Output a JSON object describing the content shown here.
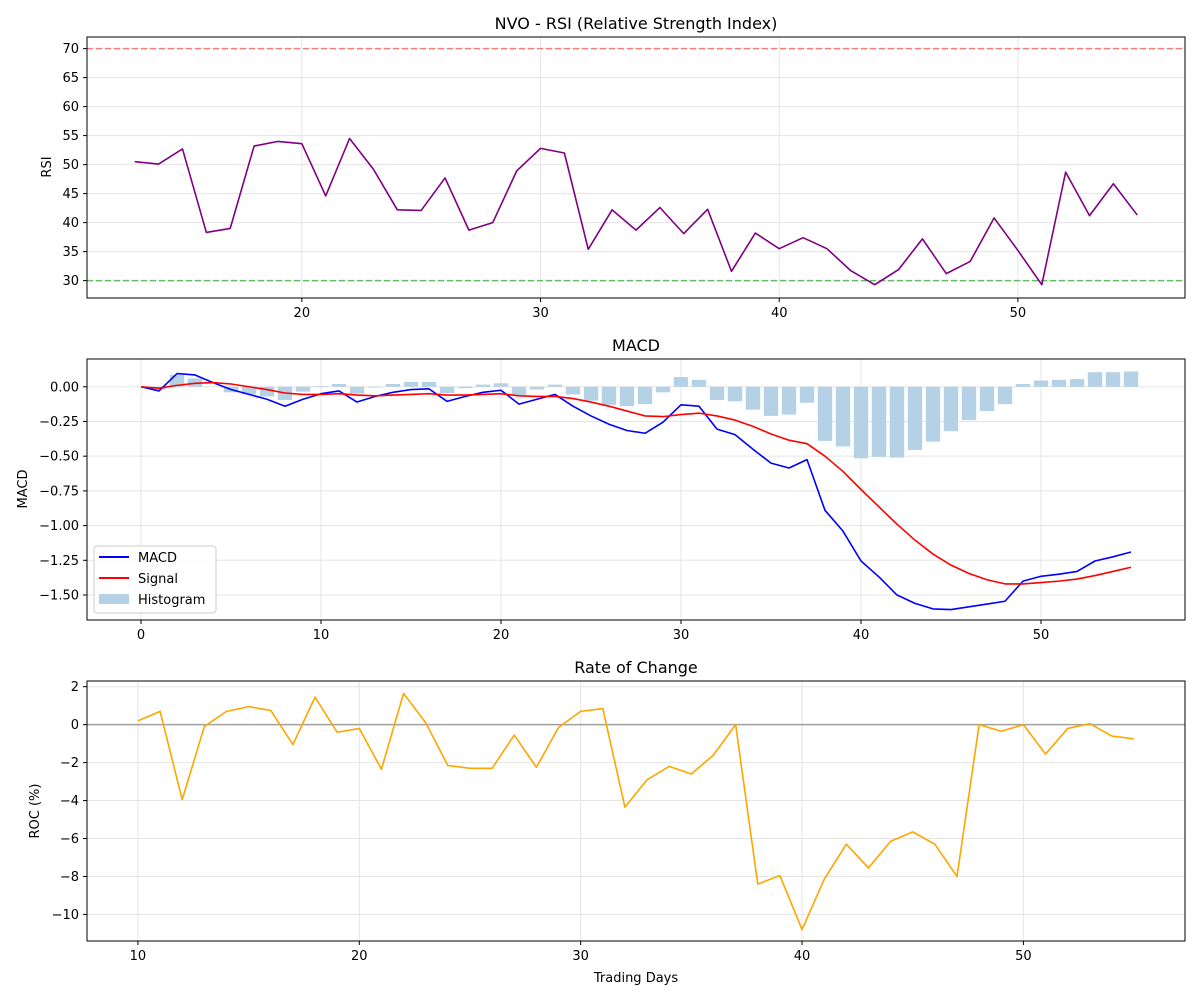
{
  "chart_data": [
    {
      "type": "line",
      "title": "NVO - RSI (Relative Strength Index)",
      "xlabel": "",
      "ylabel": "RSI",
      "xlim": [
        11,
        57
      ],
      "ylim": [
        27,
        72
      ],
      "grid": true,
      "xticks": [
        20,
        30,
        40,
        50
      ],
      "yticks": [
        30,
        35,
        40,
        45,
        50,
        55,
        60,
        65,
        70
      ],
      "reference_lines": [
        {
          "y": 70,
          "color": "#f08080",
          "style": "dashed"
        },
        {
          "y": 30,
          "color": "#66bb66",
          "style": "dashed"
        }
      ],
      "series": [
        {
          "color": "#800080",
          "x": [
            13,
            14,
            15,
            16,
            17,
            18,
            19,
            20,
            21,
            22,
            23,
            24,
            25,
            26,
            27,
            28,
            29,
            30,
            31,
            32,
            33,
            34,
            35,
            36,
            37,
            38,
            39,
            40,
            41,
            42,
            43,
            44,
            45,
            46,
            47,
            48,
            49,
            50,
            51,
            52,
            53,
            54,
            55
          ],
          "values": [
            50.5,
            50.1,
            52.7,
            38.3,
            39.0,
            53.2,
            54.0,
            53.6,
            44.6,
            54.5,
            49.2,
            42.2,
            42.1,
            47.7,
            38.7,
            40.0,
            48.9,
            52.8,
            52.0,
            35.4,
            42.2,
            38.7,
            42.6,
            38.1,
            42.3,
            31.6,
            38.2,
            35.5,
            37.4,
            35.5,
            31.7,
            29.3,
            31.9,
            37.2,
            31.2,
            33.3,
            40.8,
            35.2,
            29.3,
            48.7,
            41.2,
            46.7,
            41.3
          ]
        }
      ]
    },
    {
      "type": "line",
      "title": "MACD",
      "xlabel": "",
      "ylabel": "MACD",
      "xlim": [
        -3,
        58
      ],
      "ylim": [
        -1.68,
        0.2
      ],
      "grid": true,
      "xticks": [
        0,
        10,
        20,
        30,
        40,
        50
      ],
      "yticks": [
        0.0,
        -0.25,
        -0.5,
        -0.75,
        -1.0,
        -1.25,
        -1.5
      ],
      "ytick_labels": [
        "0.00",
        "−0.25",
        "−0.50",
        "−0.75",
        "−1.00",
        "−1.25",
        "−1.50"
      ],
      "legend": {
        "position": "lower-left"
      },
      "x": [
        0,
        1,
        2,
        3,
        4,
        5,
        6,
        7,
        8,
        9,
        10,
        11,
        12,
        13,
        14,
        15,
        16,
        17,
        18,
        19,
        20,
        21,
        22,
        23,
        24,
        25,
        26,
        27,
        28,
        29,
        30,
        31,
        32,
        33,
        34,
        35,
        36,
        37,
        38,
        39,
        40,
        41,
        42,
        43,
        44,
        45,
        46,
        47,
        48,
        49,
        50,
        51,
        52,
        53,
        54,
        55
      ],
      "series": [
        {
          "name": "MACD",
          "kind": "line",
          "color": "#0000ff",
          "values": [
            0.0,
            -0.03,
            0.095,
            0.085,
            0.03,
            -0.02,
            -0.055,
            -0.09,
            -0.14,
            -0.09,
            -0.05,
            -0.03,
            -0.11,
            -0.07,
            -0.04,
            -0.02,
            -0.015,
            -0.105,
            -0.07,
            -0.04,
            -0.025,
            -0.125,
            -0.09,
            -0.055,
            -0.14,
            -0.21,
            -0.27,
            -0.315,
            -0.335,
            -0.255,
            -0.13,
            -0.14,
            -0.305,
            -0.345,
            -0.45,
            -0.55,
            -0.585,
            -0.525,
            -0.89,
            -1.04,
            -1.255,
            -1.37,
            -1.5,
            -1.56,
            -1.6,
            -1.605,
            -1.585,
            -1.565,
            -1.545,
            -1.4,
            -1.365,
            -1.35,
            -1.33,
            -1.255,
            -1.225,
            -1.19
          ]
        },
        {
          "name": "Signal",
          "kind": "line",
          "color": "#ff0000",
          "values": [
            0.0,
            -0.01,
            0.01,
            0.025,
            0.03,
            0.02,
            0.0,
            -0.02,
            -0.045,
            -0.055,
            -0.055,
            -0.05,
            -0.06,
            -0.065,
            -0.06,
            -0.055,
            -0.05,
            -0.06,
            -0.06,
            -0.055,
            -0.05,
            -0.065,
            -0.07,
            -0.07,
            -0.085,
            -0.11,
            -0.14,
            -0.175,
            -0.21,
            -0.215,
            -0.2,
            -0.19,
            -0.21,
            -0.24,
            -0.285,
            -0.34,
            -0.385,
            -0.41,
            -0.5,
            -0.61,
            -0.74,
            -0.865,
            -0.99,
            -1.105,
            -1.205,
            -1.285,
            -1.345,
            -1.39,
            -1.42,
            -1.42,
            -1.41,
            -1.4,
            -1.385,
            -1.36,
            -1.33,
            -1.3
          ]
        },
        {
          "name": "Histogram",
          "kind": "bar",
          "color": "#b4d1e6",
          "values": [
            0.0,
            -0.02,
            0.085,
            0.06,
            0.0,
            -0.04,
            -0.055,
            -0.07,
            -0.095,
            -0.035,
            0.005,
            0.02,
            -0.05,
            -0.005,
            0.02,
            0.035,
            0.035,
            -0.045,
            -0.01,
            0.015,
            0.025,
            -0.06,
            -0.02,
            0.015,
            -0.055,
            -0.1,
            -0.13,
            -0.14,
            -0.125,
            -0.04,
            0.07,
            0.05,
            -0.095,
            -0.105,
            -0.165,
            -0.21,
            -0.2,
            -0.115,
            -0.39,
            -0.43,
            -0.515,
            -0.505,
            -0.51,
            -0.455,
            -0.395,
            -0.32,
            -0.24,
            -0.175,
            -0.125,
            0.02,
            0.045,
            0.05,
            0.055,
            0.105,
            0.105,
            0.11
          ]
        }
      ]
    },
    {
      "type": "line",
      "title": "Rate of Change",
      "xlabel": "Trading Days",
      "ylabel": "ROC (%)",
      "xlim": [
        7.7,
        57.3
      ],
      "ylim": [
        -11.4,
        2.3
      ],
      "grid": true,
      "xticks": [
        10,
        20,
        30,
        40,
        50
      ],
      "yticks": [
        2,
        0,
        -2,
        -4,
        -6,
        -8,
        -10
      ],
      "ytick_labels": [
        "2",
        "0",
        "−2",
        "−4",
        "−6",
        "−8",
        "−10"
      ],
      "reference_lines": [
        {
          "y": 0,
          "color": "#a0a0a0",
          "style": "solid"
        }
      ],
      "series": [
        {
          "color": "#ffa500",
          "x": [
            10,
            11,
            12,
            13,
            14,
            15,
            16,
            17,
            18,
            19,
            20,
            21,
            22,
            23,
            24,
            25,
            26,
            27,
            28,
            29,
            30,
            31,
            32,
            33,
            34,
            35,
            36,
            37,
            38,
            39,
            40,
            41,
            42,
            43,
            44,
            45,
            46,
            47,
            48,
            49,
            50,
            51,
            52,
            53,
            54,
            55
          ],
          "values": [
            0.2,
            0.7,
            -3.95,
            -0.1,
            0.7,
            0.95,
            0.75,
            -1.05,
            1.45,
            -0.4,
            -0.2,
            -2.35,
            1.65,
            0.1,
            -2.15,
            -2.3,
            -2.3,
            -0.55,
            -2.25,
            -0.15,
            0.7,
            0.85,
            -4.35,
            -2.9,
            -2.2,
            -2.6,
            -1.6,
            0.0,
            -8.4,
            -7.95,
            -10.8,
            -8.15,
            -6.3,
            -7.55,
            -6.15,
            -5.65,
            -6.3,
            -8.0,
            0.0,
            -0.35,
            0.0,
            -1.55,
            -0.2,
            0.05,
            -0.6,
            -0.75
          ]
        }
      ]
    }
  ]
}
